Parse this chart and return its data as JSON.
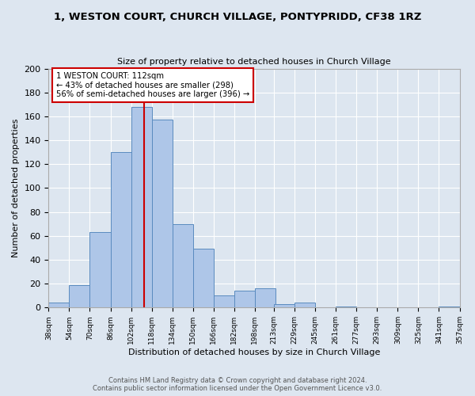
{
  "title": "1, WESTON COURT, CHURCH VILLAGE, PONTYPRIDD, CF38 1RZ",
  "subtitle": "Size of property relative to detached houses in Church Village",
  "xlabel": "Distribution of detached houses by size in Church Village",
  "ylabel": "Number of detached properties",
  "footer_line1": "Contains HM Land Registry data © Crown copyright and database right 2024.",
  "footer_line2": "Contains public sector information licensed under the Open Government Licence v3.0.",
  "bin_labels": [
    "38sqm",
    "54sqm",
    "70sqm",
    "86sqm",
    "102sqm",
    "118sqm",
    "134sqm",
    "150sqm",
    "166sqm",
    "182sqm",
    "198sqm",
    "213sqm",
    "229sqm",
    "245sqm",
    "261sqm",
    "277sqm",
    "293sqm",
    "309sqm",
    "325sqm",
    "341sqm",
    "357sqm"
  ],
  "bin_edges": [
    38,
    54,
    70,
    86,
    102,
    118,
    134,
    150,
    166,
    182,
    198,
    213,
    229,
    245,
    261,
    277,
    293,
    309,
    325,
    341,
    357
  ],
  "bar_heights": [
    4,
    19,
    63,
    130,
    168,
    157,
    70,
    49,
    10,
    14,
    16,
    3,
    4,
    0,
    1,
    0,
    0,
    0,
    0,
    1,
    0
  ],
  "bar_color": "#aec6e8",
  "bar_edge_color": "#5a8bbf",
  "property_size": 112,
  "vline_color": "#cc0000",
  "vline_x": 112,
  "annotation_title": "1 WESTON COURT: 112sqm",
  "annotation_line2": "← 43% of detached houses are smaller (298)",
  "annotation_line3": "56% of semi-detached houses are larger (396) →",
  "annotation_box_color": "#ffffff",
  "annotation_box_edge_color": "#cc0000",
  "ylim": [
    0,
    200
  ],
  "yticks": [
    0,
    20,
    40,
    60,
    80,
    100,
    120,
    140,
    160,
    180,
    200
  ],
  "bg_color": "#dde6f0",
  "plot_bg_color": "#dde6f0",
  "grid_color": "#ffffff"
}
